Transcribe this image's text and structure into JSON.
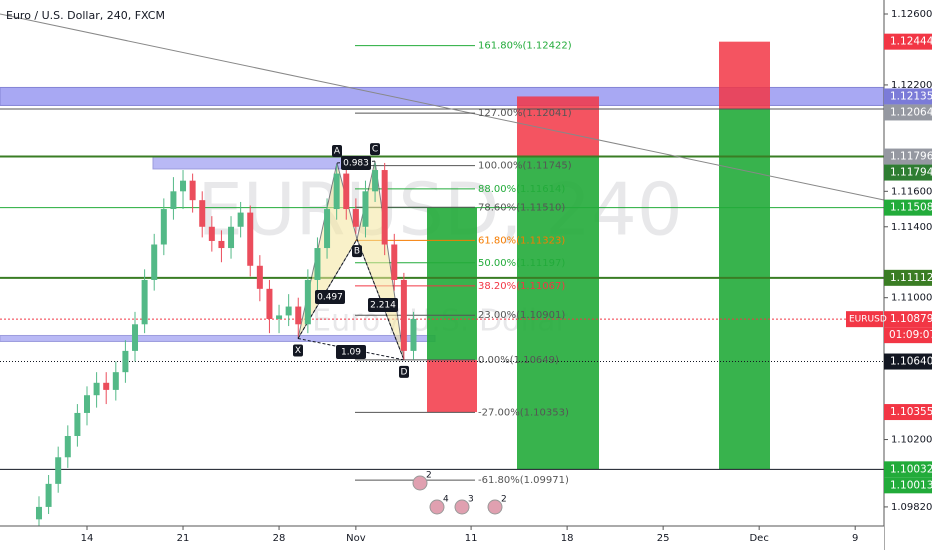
{
  "chart_data": {
    "type": "candlestick",
    "title": "Euro / U.S. Dollar, 240, FXCM",
    "watermark": "EURUSD, 240",
    "watermark_sub": "Euro / U.S. Dollar",
    "xlim": [
      -4.53,
      41.5
    ],
    "ylim": [
      1.09718,
      1.12679
    ],
    "xticks": [
      {
        "value": 0,
        "label": "14"
      },
      {
        "value": 5,
        "label": "21"
      },
      {
        "value": 10,
        "label": "28"
      },
      {
        "value": 14,
        "label": "Nov"
      },
      {
        "value": 20,
        "label": "11"
      },
      {
        "value": 25,
        "label": "18"
      },
      {
        "value": 30,
        "label": "25"
      },
      {
        "value": 35,
        "label": "Dec"
      },
      {
        "value": 40,
        "label": "9"
      }
    ],
    "yticks": [
      {
        "value": 1.126,
        "label": "1.12600"
      },
      {
        "value": 1.122,
        "label": "1.12200"
      },
      {
        "value": 1.116,
        "label": "1.11600"
      },
      {
        "value": 1.114,
        "label": "1.11400"
      },
      {
        "value": 1.11,
        "label": "1.11000"
      },
      {
        "value": 1.102,
        "label": "1.10200"
      },
      {
        "value": 1.0982,
        "label": "1.09820"
      }
    ],
    "x": [
      -2.5,
      -2,
      -1.5,
      -1,
      -0.5,
      0,
      0.5,
      1,
      1.5,
      2,
      2.5,
      3,
      3.5,
      4,
      4.5,
      5,
      5.5,
      6,
      6.5,
      7,
      7.5,
      8,
      8.5,
      9,
      9.5,
      10,
      10.5,
      11,
      11.5,
      12,
      12.5,
      13,
      13.5,
      14,
      14.5,
      15,
      15.5,
      16,
      16.5,
      17
    ],
    "open": [
      1.0975,
      1.0982,
      1.0995,
      1.101,
      1.1022,
      1.1035,
      1.1045,
      1.1052,
      1.1048,
      1.1058,
      1.107,
      1.1085,
      1.111,
      1.113,
      1.115,
      1.116,
      1.1166,
      1.1155,
      1.114,
      1.1132,
      1.1128,
      1.114,
      1.1148,
      1.1118,
      1.1105,
      1.1088,
      1.109,
      1.1095,
      1.1085,
      1.111,
      1.1128,
      1.115,
      1.117,
      1.115,
      1.114,
      1.116,
      1.1172,
      1.113,
      1.111,
      1.107
    ],
    "high": [
      1.0988,
      1.1,
      1.1016,
      1.1028,
      1.104,
      1.105,
      1.1058,
      1.1058,
      1.1064,
      1.1076,
      1.1092,
      1.1116,
      1.1136,
      1.1156,
      1.1168,
      1.1172,
      1.117,
      1.116,
      1.1146,
      1.1138,
      1.1146,
      1.1154,
      1.1152,
      1.1124,
      1.111,
      1.1096,
      1.1102,
      1.11,
      1.1116,
      1.1134,
      1.1156,
      1.1175,
      1.1174,
      1.1156,
      1.1166,
      1.1176,
      1.1176,
      1.1136,
      1.1114,
      1.1092
    ],
    "low": [
      1.097,
      1.0978,
      1.099,
      1.1004,
      1.1016,
      1.1028,
      1.1038,
      1.104,
      1.1042,
      1.1052,
      1.1064,
      1.108,
      1.1104,
      1.1124,
      1.1144,
      1.115,
      1.1148,
      1.1134,
      1.1126,
      1.112,
      1.1122,
      1.1134,
      1.1112,
      1.1098,
      1.108,
      1.108,
      1.1084,
      1.1078,
      1.108,
      1.1104,
      1.1122,
      1.1144,
      1.1144,
      1.1136,
      1.1134,
      1.1154,
      1.1124,
      1.1104,
      1.1065,
      1.1065
    ],
    "close": [
      1.0982,
      1.0995,
      1.101,
      1.1022,
      1.1035,
      1.1045,
      1.1052,
      1.1048,
      1.1058,
      1.107,
      1.1085,
      1.111,
      1.113,
      1.115,
      1.116,
      1.1166,
      1.1155,
      1.114,
      1.1132,
      1.1128,
      1.114,
      1.1148,
      1.1118,
      1.1105,
      1.1088,
      1.109,
      1.1095,
      1.1085,
      1.111,
      1.1128,
      1.115,
      1.117,
      1.115,
      1.114,
      1.116,
      1.1172,
      1.113,
      1.111,
      1.107,
      1.1088
    ],
    "up_color": "#53b987",
    "down_color": "#eb4d5c",
    "price_tags": [
      {
        "value": 1.12444,
        "color": "#f23645"
      },
      {
        "value": 1.12135,
        "color": "#7b7bd8"
      },
      {
        "value": 1.12064,
        "color": "#9598a1"
      },
      {
        "value": 1.11796,
        "color": "#9598a1"
      },
      {
        "value": 1.11794,
        "color": "#2e7d32"
      },
      {
        "value": 1.11508,
        "color": "#22ab3a"
      },
      {
        "value": 1.11112,
        "color": "#3a7d24"
      },
      {
        "value": 1.10879,
        "color": "#f23645",
        "name": "EURUSD",
        "countdown": "01:09:07"
      },
      {
        "value": 1.1064,
        "label": "1.10640",
        "color": "#131722"
      },
      {
        "value": 1.10355,
        "color": "#f23645"
      },
      {
        "value": 1.10032,
        "color": "#22ab3a"
      },
      {
        "value": 1.10013,
        "color": "#22ab3a"
      }
    ],
    "fib_levels": [
      {
        "label": "161.80%(1.12422)",
        "price": 1.12422,
        "color": "#22ab3a"
      },
      {
        "label": "127.00%(1.12041)",
        "price": 1.12041,
        "color": "#555"
      },
      {
        "label": "100.00%(1.11745)",
        "price": 1.11745,
        "color": "#555"
      },
      {
        "label": "88.00%(1.11614)",
        "price": 1.11614,
        "color": "#22ab3a"
      },
      {
        "label": "78.60%(1.11510)",
        "price": 1.1151,
        "color": "#555"
      },
      {
        "label": "61.80%(1.11323)",
        "price": 1.11323,
        "color": "#f57c00"
      },
      {
        "label": "50.00%(1.11197)",
        "price": 1.11197,
        "color": "#22ab3a"
      },
      {
        "label": "38.20%(1.11067)",
        "price": 1.11067,
        "color": "#f23645"
      },
      {
        "label": "23.00%(1.10901)",
        "price": 1.10901,
        "color": "#555"
      },
      {
        "label": "0.00%(1.10649)",
        "price": 1.10649,
        "color": "#555"
      },
      {
        "label": "-27.00%(1.10353)",
        "price": 1.10353,
        "color": "#555"
      },
      {
        "label": "-61.80%(1.09971)",
        "price": 1.09971,
        "color": "#555"
      }
    ],
    "pattern": [
      {
        "label": "X",
        "price": 1.1077
      },
      {
        "label": "A",
        "price": 1.1176
      },
      {
        "label": "B",
        "price": 1.1133
      },
      {
        "label": "C",
        "price": 1.1177
      },
      {
        "label": "D",
        "price": 1.10649
      }
    ],
    "ratios": [
      "0.497",
      "0.983",
      "2.214",
      "1.09"
    ],
    "events": [
      "2",
      "4",
      "3",
      "2"
    ]
  }
}
